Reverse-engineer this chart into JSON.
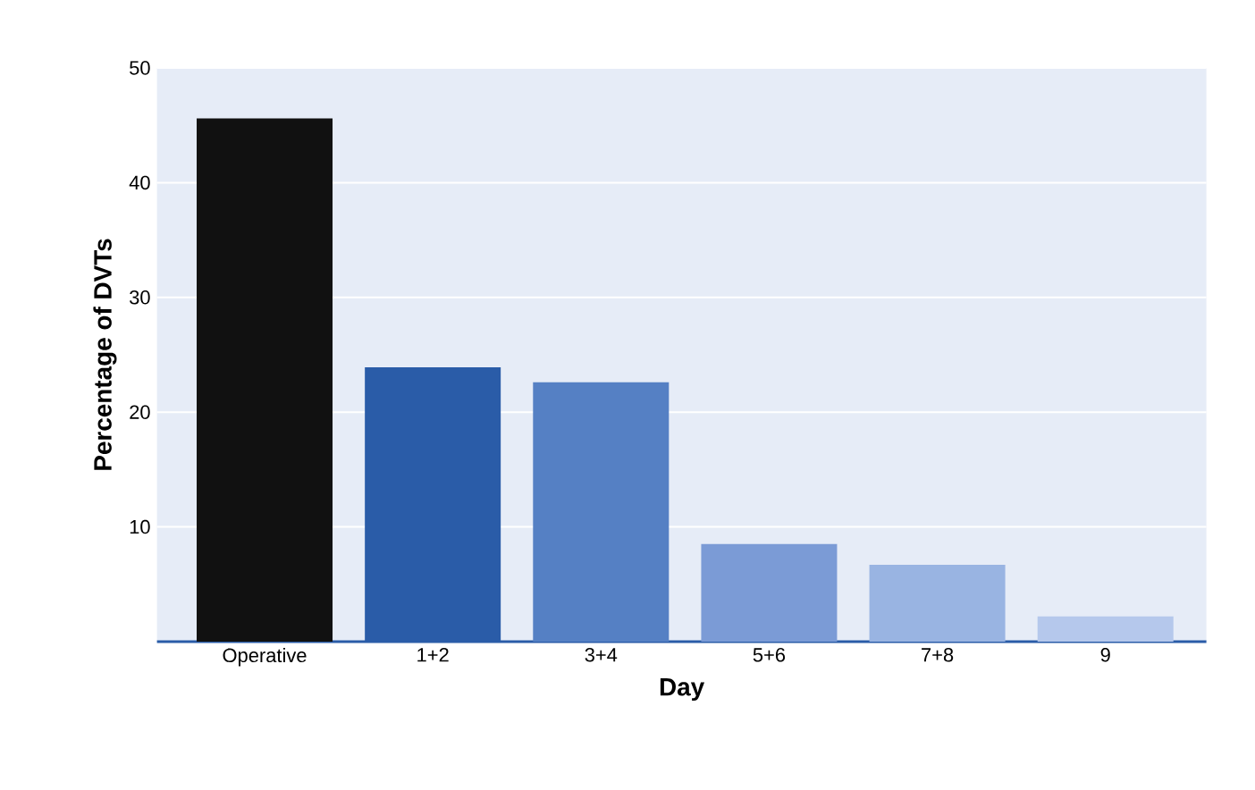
{
  "chart_data": {
    "type": "bar",
    "xlabel": "Day",
    "ylabel": "Percentage of DVTs",
    "categories": [
      "Operative",
      "1+2",
      "3+4",
      "5+6",
      "7+8",
      "9"
    ],
    "values": [
      45.6,
      23.9,
      22.6,
      8.5,
      6.7,
      2.2
    ],
    "colors": [
      "#111111",
      "#2a5ca8",
      "#5580c4",
      "#7b9bd6",
      "#99b4e2",
      "#b5c8ec"
    ],
    "ylim": [
      0,
      50
    ],
    "yticks": [
      10,
      20,
      30,
      40,
      50
    ],
    "grid": "y"
  }
}
